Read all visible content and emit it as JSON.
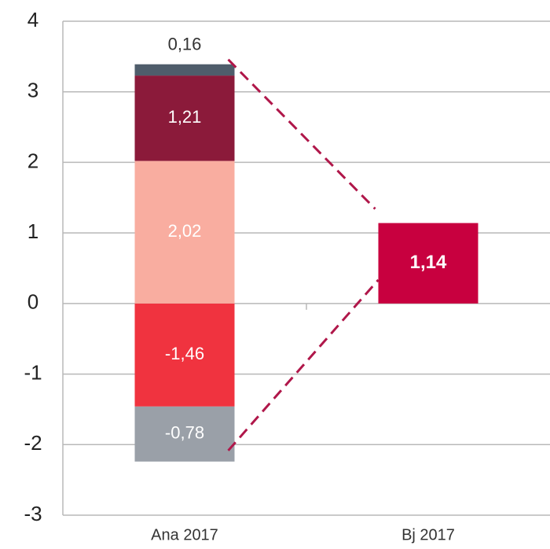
{
  "chart_data": {
    "type": "bar",
    "stacked": true,
    "categories": [
      "Ana 2017",
      "Bj 2017"
    ],
    "series": [
      {
        "color": "#f0333f",
        "values": [
          -1.46,
          null
        ],
        "value_labels": [
          "-1,46",
          null
        ]
      },
      {
        "color": "#9aa0a8",
        "values": [
          -0.78,
          null
        ],
        "value_labels": [
          "-0,78",
          null
        ]
      },
      {
        "color": "#f9ada0",
        "values": [
          2.02,
          null
        ],
        "value_labels": [
          "2,02",
          null
        ]
      },
      {
        "color": "#8b1a3a",
        "values": [
          1.21,
          null
        ],
        "value_labels": [
          "1,21",
          null
        ]
      },
      {
        "color": "#4f5d6b",
        "values": [
          0.16,
          null
        ],
        "value_labels": [
          "0,16",
          null
        ]
      },
      {
        "color": "#c8003f",
        "values": [
          null,
          1.14
        ],
        "value_labels": [
          null,
          "1,14"
        ]
      }
    ],
    "ylim": [
      -3,
      4
    ],
    "yticks": [
      -3,
      -2,
      -1,
      0,
      1,
      2,
      3,
      4
    ],
    "grid": true
  }
}
